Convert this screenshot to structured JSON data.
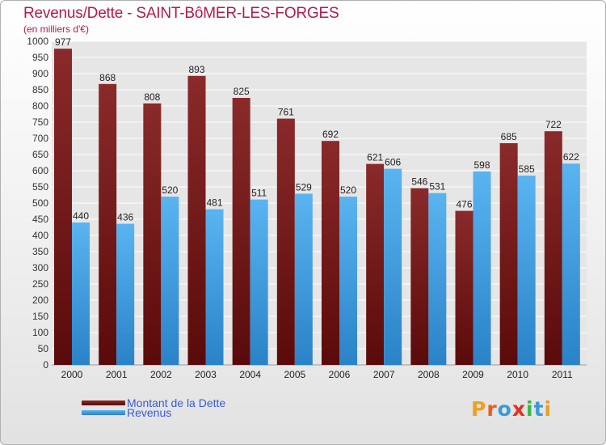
{
  "header": {
    "title": "Revenus/Dette - SAINT-BôMER-LES-FORGES",
    "subtitle": "(en milliers d'€)"
  },
  "legend": {
    "dette_label": "Montant de la Dette",
    "revenus_label": "Revenus"
  },
  "logo": {
    "letters": [
      "P",
      "r",
      "o",
      "x",
      "i",
      "t",
      "i"
    ],
    "colors": [
      "#f0a020",
      "#e8601c",
      "#3a9ad8",
      "#e8301c",
      "#3ab54a",
      "#3a9ad8",
      "#e8a020"
    ]
  },
  "colors": {
    "dette": "#7a1a1a",
    "revenus": "#4aa3e6",
    "title": "#b01c4c",
    "legend_text": "#3a5bd0"
  },
  "chart_data": {
    "type": "bar",
    "title": "Revenus/Dette - SAINT-BôMER-LES-FORGES",
    "subtitle": "(en milliers d'€)",
    "categories": [
      "2000",
      "2001",
      "2002",
      "2003",
      "2004",
      "2005",
      "2006",
      "2007",
      "2008",
      "2009",
      "2010",
      "2011"
    ],
    "series": [
      {
        "name": "Montant de la Dette",
        "values": [
          977,
          868,
          808,
          893,
          825,
          761,
          692,
          621,
          546,
          476,
          685,
          722
        ]
      },
      {
        "name": "Revenus",
        "values": [
          440,
          436,
          520,
          481,
          511,
          529,
          520,
          606,
          531,
          598,
          585,
          622
        ]
      }
    ],
    "ylim": [
      0,
      1000
    ],
    "yticks": [
      0,
      50,
      100,
      150,
      200,
      250,
      300,
      350,
      400,
      450,
      500,
      550,
      600,
      650,
      700,
      750,
      800,
      850,
      900,
      950,
      1000
    ],
    "grid": true,
    "legend_position": "bottom-left"
  }
}
